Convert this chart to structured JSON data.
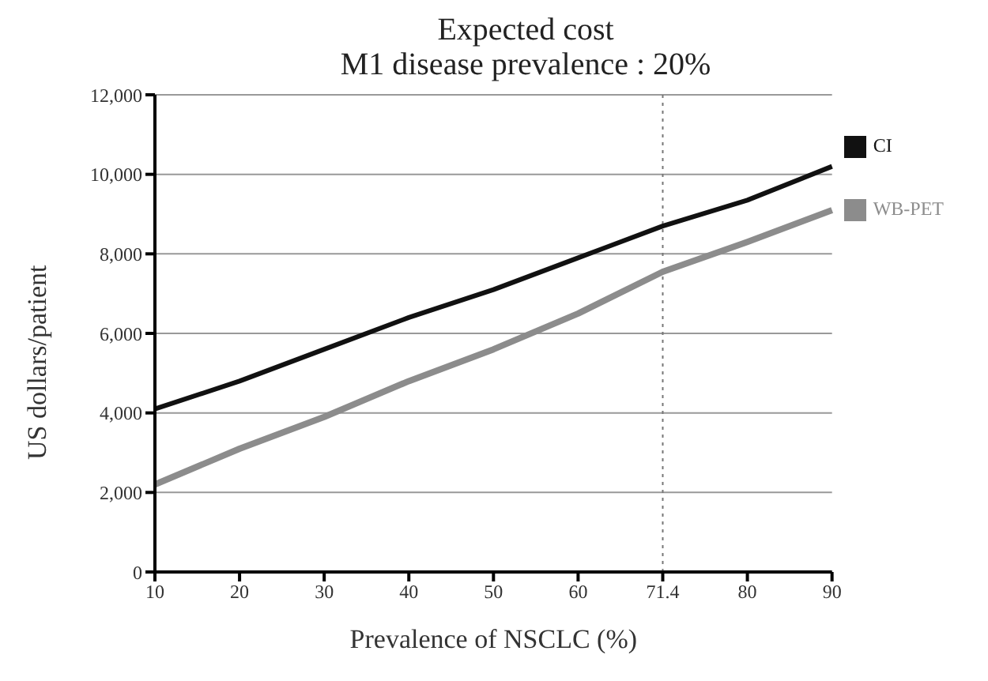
{
  "chart_data": {
    "type": "line",
    "title": "Expected cost",
    "subtitle": "M1 disease prevalence : 20%",
    "xlabel": "Prevalence of NSCLC (%)",
    "ylabel": "US dollars/patient",
    "categories": [
      "10",
      "20",
      "30",
      "40",
      "50",
      "60",
      "71.4",
      "80",
      "90"
    ],
    "series": [
      {
        "name": "CI",
        "color": "#111111",
        "values": [
          4100,
          4800,
          5600,
          6400,
          7100,
          7900,
          8700,
          9350,
          10200
        ]
      },
      {
        "name": "WB-PET",
        "color": "#8c8c8c",
        "values": [
          2200,
          3100,
          3900,
          4800,
          5600,
          6500,
          7550,
          8300,
          9100
        ]
      }
    ],
    "ylim": [
      0,
      12000
    ],
    "yticks": [
      0,
      {
        "value": 2000,
        "label": "2,000"
      },
      {
        "value": 4000,
        "label": "4,000"
      },
      {
        "value": 6000,
        "label": "6,000"
      },
      {
        "value": 8000,
        "label": "8,000"
      },
      {
        "value": 10000,
        "label": "10,000"
      },
      {
        "value": 12000,
        "label": "12,000"
      }
    ],
    "ref_lines": [
      {
        "axis": "x",
        "value": "71.4",
        "color": "#777777",
        "line_style": "dotted"
      }
    ],
    "grid": "y",
    "legend": "right",
    "marker": "none",
    "line_style": "solid"
  }
}
